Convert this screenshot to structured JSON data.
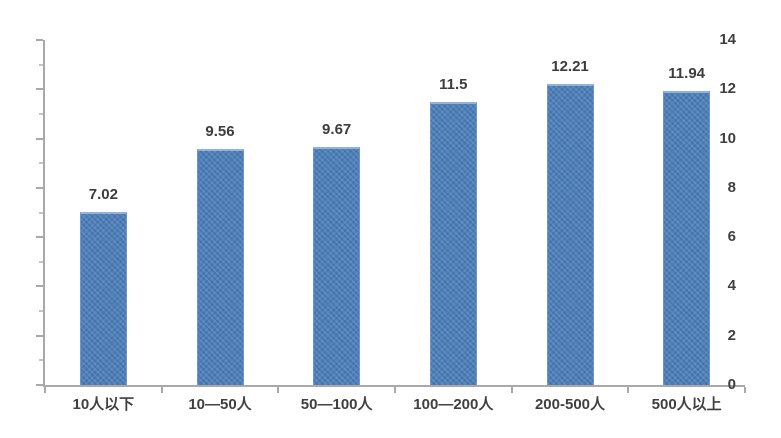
{
  "chart_data": {
    "type": "bar",
    "title": "",
    "xlabel": "",
    "ylabel": "",
    "categories": [
      "10人以下",
      "10—50人",
      "50—100人",
      "100—200人",
      "200-500人",
      "500人以上"
    ],
    "values": [
      7.02,
      9.56,
      9.67,
      11.5,
      12.21,
      11.94
    ],
    "value_labels": [
      "7.02",
      "9.56",
      "9.67",
      "11.5",
      "12.21",
      "11.94"
    ],
    "series_name": "",
    "ylim": [
      0,
      14
    ],
    "ytick_interval": 2,
    "ytick_minor_interval": 1,
    "yticks": [
      "0",
      "2",
      "4",
      "6",
      "8",
      "10",
      "12",
      "14"
    ],
    "grid": false,
    "legend": false,
    "colors": {
      "bar_fill": "#4a7ebb",
      "bar_top_highlight": "#93b2da",
      "axis_line": "#a9a9a9",
      "tick_label": "#3f3f3f",
      "value_label": "#3c3c3c",
      "background": "#ffffff"
    }
  }
}
